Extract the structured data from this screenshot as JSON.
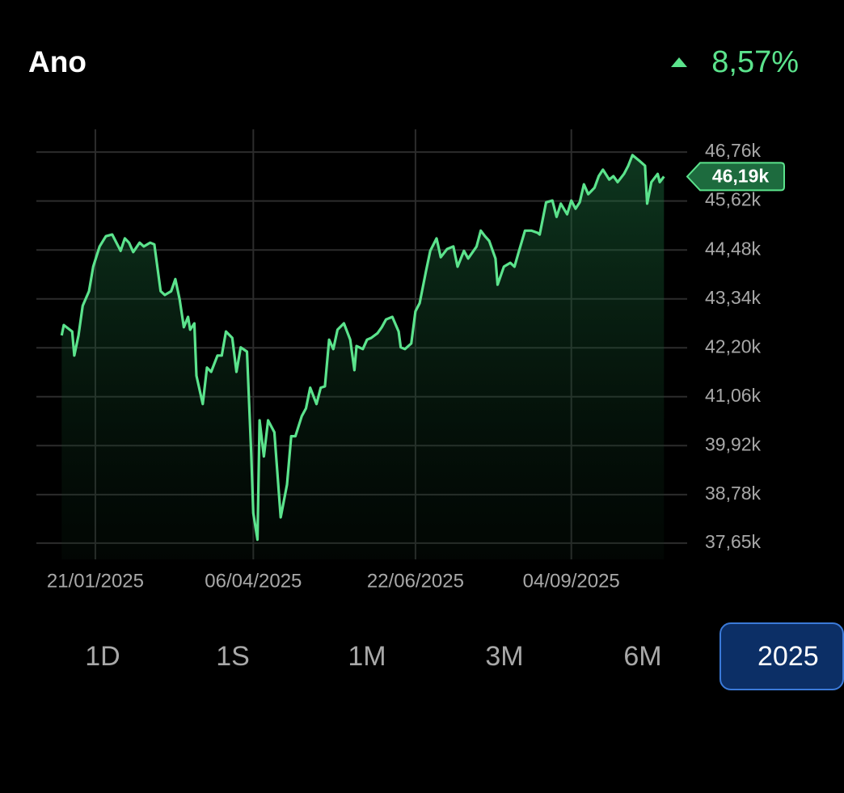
{
  "header": {
    "title": "Ano",
    "change": "8,57%"
  },
  "chart_data": {
    "type": "line",
    "color": "#5be38c",
    "grid": true,
    "x": [
      "05/01/2025",
      "06/01/2025",
      "10/01/2025",
      "11/01/2025",
      "13/01/2025",
      "15/01/2025",
      "18/01/2025",
      "20/01/2025",
      "23/01/2025",
      "26/01/2025",
      "29/01/2025",
      "02/02/2025",
      "04/02/2025",
      "06/02/2025",
      "08/02/2025",
      "11/02/2025",
      "13/02/2025",
      "16/02/2025",
      "18/02/2025",
      "21/02/2025",
      "23/02/2025",
      "26/02/2025",
      "28/02/2025",
      "02/03/2025",
      "04/03/2025",
      "06/03/2025",
      "07/03/2025",
      "09/03/2025",
      "10/03/2025",
      "13/03/2025",
      "15/03/2025",
      "17/03/2025",
      "20/03/2025",
      "22/03/2025",
      "24/03/2025",
      "27/03/2025",
      "29/03/2025",
      "31/03/2025",
      "03/04/2025",
      "05/04/2025",
      "06/04/2025",
      "08/04/2025",
      "09/04/2025",
      "11/04/2025",
      "13/04/2025",
      "16/04/2025",
      "17/04/2025",
      "19/04/2025",
      "22/04/2025",
      "24/04/2025",
      "26/04/2025",
      "29/04/2025",
      "01/05/2025",
      "03/05/2025",
      "06/05/2025",
      "08/05/2025",
      "10/05/2025",
      "12/05/2025",
      "14/05/2025",
      "16/05/2025",
      "19/05/2025",
      "22/05/2025",
      "24/05/2025",
      "25/05/2025",
      "28/05/2025",
      "30/05/2025",
      "01/06/2025",
      "04/06/2025",
      "06/06/2025",
      "08/06/2025",
      "11/06/2025",
      "14/06/2025",
      "15/06/2025",
      "17/06/2025",
      "20/06/2025",
      "22/06/2025",
      "24/06/2025",
      "27/06/2025",
      "29/06/2025",
      "02/07/2025",
      "04/07/2025",
      "07/07/2025",
      "10/07/2025",
      "12/07/2025",
      "15/07/2025",
      "17/07/2025",
      "21/07/2025",
      "23/07/2025",
      "25/07/2025",
      "27/07/2025",
      "30/07/2025",
      "31/07/2025",
      "03/08/2025",
      "06/08/2025",
      "08/08/2025",
      "10/08/2025",
      "13/08/2025",
      "16/08/2025",
      "19/08/2025",
      "20/08/2025",
      "23/08/2025",
      "26/08/2025",
      "28/08/2025",
      "30/08/2025",
      "02/09/2025",
      "04/09/2025",
      "06/09/2025",
      "08/09/2025",
      "10/09/2025",
      "12/09/2025",
      "15/09/2025",
      "17/09/2025",
      "19/09/2025",
      "22/09/2025",
      "24/09/2025",
      "26/09/2025",
      "29/09/2025",
      "01/10/2025",
      "03/10/2025",
      "06/10/2025",
      "09/10/2025",
      "10/10/2025",
      "12/10/2025",
      "15/10/2025",
      "16/10/2025",
      "18/10/2025"
    ],
    "values": [
      42490,
      42730,
      42580,
      42020,
      42490,
      43180,
      43520,
      44090,
      44560,
      44800,
      44840,
      44460,
      44750,
      44650,
      44430,
      44650,
      44560,
      44650,
      44610,
      43520,
      43430,
      43520,
      43800,
      43330,
      42680,
      42920,
      42620,
      42770,
      41550,
      40890,
      41740,
      41640,
      42020,
      42020,
      42580,
      42430,
      41640,
      42210,
      42110,
      39760,
      38350,
      37730,
      40510,
      39670,
      40510,
      40230,
      39570,
      38250,
      39010,
      40140,
      40140,
      40610,
      40790,
      41270,
      40890,
      41270,
      41300,
      42390,
      42170,
      42620,
      42770,
      42390,
      41680,
      42240,
      42170,
      42390,
      42430,
      42540,
      42680,
      42860,
      42920,
      42580,
      42210,
      42170,
      42300,
      43050,
      43240,
      43990,
      44460,
      44750,
      44310,
      44500,
      44560,
      44090,
      44460,
      44280,
      44560,
      44930,
      44800,
      44690,
      44280,
      43670,
      44090,
      44180,
      44090,
      44430,
      44930,
      44930,
      44880,
      44840,
      45590,
      45630,
      45250,
      45560,
      45310,
      45630,
      45440,
      45590,
      46010,
      45780,
      45930,
      46200,
      46350,
      46120,
      46200,
      46060,
      46250,
      46440,
      46690,
      46570,
      46440,
      45560,
      46060,
      46250,
      46060,
      46190
    ],
    "xlim": [
      "24/12/2024",
      "29/10/2025"
    ],
    "xticks": [
      "21/01/2025",
      "06/04/2025",
      "22/06/2025",
      "04/09/2025"
    ],
    "ylim": [
      37270,
      47290
    ],
    "yticks": [
      {
        "value": 37650,
        "label": "37,65k"
      },
      {
        "value": 38780,
        "label": "38,78k"
      },
      {
        "value": 39920,
        "label": "39,92k"
      },
      {
        "value": 41060,
        "label": "41,06k"
      },
      {
        "value": 42200,
        "label": "42,20k"
      },
      {
        "value": 43340,
        "label": "43,34k"
      },
      {
        "value": 44480,
        "label": "44,48k"
      },
      {
        "value": 45620,
        "label": "45,62k"
      },
      {
        "value": 46760,
        "label": "46,76k"
      }
    ],
    "current_value": {
      "value": 46190,
      "label": "46,19k"
    }
  },
  "range_buttons": [
    "1D",
    "1S",
    "1M",
    "3M",
    "6M",
    "2025"
  ]
}
